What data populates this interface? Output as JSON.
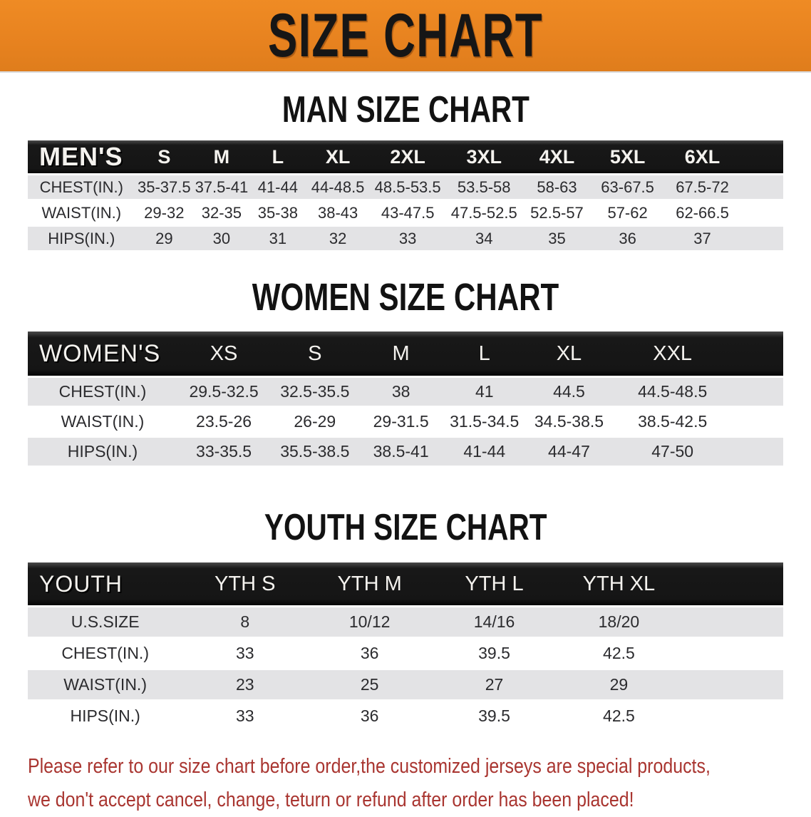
{
  "banner": {
    "title": "SIZE CHART",
    "bg_color": "#E7821F",
    "text_color": "#161616"
  },
  "sections": [
    {
      "heading": "MAN SIZE CHART",
      "table": {
        "header_label": "MEN'S",
        "columns": [
          "S",
          "M",
          "L",
          "XL",
          "2XL",
          "3XL",
          "4XL",
          "5XL",
          "6XL"
        ],
        "rows": [
          {
            "label": "CHEST(IN.)",
            "values": [
              "35-37.5",
              "37.5-41",
              "41-44",
              "44-48.5",
              "48.5-53.5",
              "53.5-58",
              "58-63",
              "63-67.5",
              "67.5-72"
            ]
          },
          {
            "label": "WAIST(IN.)",
            "values": [
              "29-32",
              "32-35",
              "35-38",
              "38-43",
              "43-47.5",
              "47.5-52.5",
              "52.5-57",
              "57-62",
              "62-66.5"
            ]
          },
          {
            "label": "HIPS(IN.)",
            "values": [
              "29",
              "30",
              "31",
              "32",
              "33",
              "34",
              "35",
              "36",
              "37"
            ]
          }
        ]
      }
    },
    {
      "heading": "WOMEN SIZE CHART",
      "table": {
        "header_label": "WOMEN'S",
        "columns": [
          "XS",
          "S",
          "M",
          "L",
          "XL",
          "XXL"
        ],
        "rows": [
          {
            "label": "CHEST(IN.)",
            "values": [
              "29.5-32.5",
              "32.5-35.5",
              "38",
              "41",
              "44.5",
              "44.5-48.5"
            ]
          },
          {
            "label": "WAIST(IN.)",
            "values": [
              "23.5-26",
              "26-29",
              "29-31.5",
              "31.5-34.5",
              "34.5-38.5",
              "38.5-42.5"
            ]
          },
          {
            "label": "HIPS(IN.)",
            "values": [
              "33-35.5",
              "35.5-38.5",
              "38.5-41",
              "41-44",
              "44-47",
              "47-50"
            ]
          }
        ]
      }
    },
    {
      "heading": "YOUTH SIZE CHART",
      "table": {
        "header_label": "YOUTH",
        "columns": [
          "YTH S",
          "YTH M",
          "YTH L",
          "YTH XL"
        ],
        "rows": [
          {
            "label": "U.S.SIZE",
            "values": [
              "8",
              "10/12",
              "14/16",
              "18/20"
            ]
          },
          {
            "label": "CHEST(IN.)",
            "values": [
              "33",
              "36",
              "39.5",
              "42.5"
            ]
          },
          {
            "label": "WAIST(IN.)",
            "values": [
              "23",
              "25",
              "27",
              "29"
            ]
          },
          {
            "label": "HIPS(IN.)",
            "values": [
              "33",
              "36",
              "39.5",
              "42.5"
            ]
          }
        ]
      }
    }
  ],
  "disclaimer": {
    "color": "#A93530",
    "lines": [
      "Please refer to our size chart before order,the customized jerseys are special products,",
      "we don't accept cancel, change, teturn or refund after order has been placed!"
    ]
  }
}
